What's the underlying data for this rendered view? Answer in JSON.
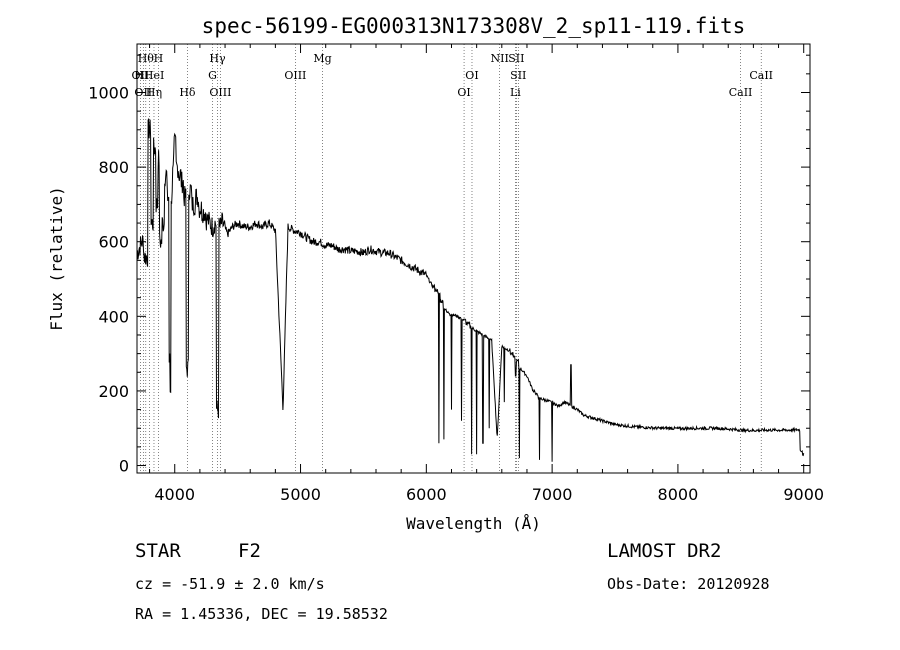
{
  "chart_data": {
    "type": "line",
    "title": "spec-56199-EG000313N173308V_2_sp11-119.fits",
    "xlabel": "Wavelength (Å)",
    "ylabel": "Flux (relative)",
    "xlim": [
      3700,
      9050
    ],
    "ylim": [
      -20,
      1130
    ],
    "xticks": [
      4000,
      5000,
      6000,
      7000,
      8000,
      9000
    ],
    "yticks": [
      0,
      200,
      400,
      600,
      800,
      1000
    ],
    "grid": false,
    "series": [
      {
        "x": [
          3700,
          3740,
          3770,
          3800,
          3820,
          3840,
          3860,
          3870,
          3890,
          3910,
          3930,
          3950,
          3960,
          3968,
          3975,
          3990,
          4000,
          4020,
          4040,
          4060,
          4080,
          4101,
          4120,
          4150,
          4180,
          4200,
          4230,
          4260,
          4300,
          4320,
          4340,
          4360,
          4380,
          4420,
          4460,
          4500,
          4550,
          4600,
          4650,
          4700,
          4750,
          4800,
          4861,
          4900,
          4950,
          5000,
          5050,
          5100,
          5150,
          5200,
          5250,
          5300,
          5350,
          5400,
          5450,
          5500,
          5550,
          5600,
          5650,
          5700,
          5750,
          5800,
          5850,
          5900,
          5950,
          6000,
          6050,
          6080,
          6100,
          6120,
          6150,
          6170,
          6200,
          6250,
          6300,
          6330,
          6360,
          6400,
          6450,
          6500,
          6520,
          6563,
          6600,
          6650,
          6680,
          6700,
          6720,
          6750,
          6800,
          6850,
          6880,
          6900,
          6950,
          6990,
          7020,
          7050,
          7100,
          7150,
          7200,
          7250,
          7300,
          7350,
          7400,
          7450,
          7500,
          7550,
          7600,
          7650,
          7700,
          7750,
          7800,
          7850,
          7900,
          7950,
          8000,
          8100,
          8200,
          8300,
          8400,
          8500,
          8600,
          8700,
          8800,
          8900,
          8960,
          8980,
          9000
        ],
        "y": [
          570,
          600,
          560,
          900,
          650,
          850,
          700,
          820,
          600,
          650,
          780,
          720,
          280,
          200,
          720,
          820,
          860,
          800,
          780,
          760,
          720,
          260,
          740,
          700,
          720,
          690,
          680,
          660,
          640,
          650,
          150,
          640,
          650,
          620,
          640,
          650,
          640,
          640,
          650,
          640,
          650,
          630,
          150,
          640,
          630,
          625,
          610,
          600,
          600,
          590,
          590,
          580,
          580,
          575,
          575,
          570,
          580,
          575,
          570,
          570,
          560,
          550,
          540,
          530,
          520,
          510,
          480,
          470,
          460,
          440,
          420,
          410,
          405,
          400,
          390,
          380,
          370,
          360,
          350,
          340,
          335,
          70,
          320,
          310,
          300,
          290,
          280,
          260,
          240,
          200,
          190,
          180,
          175,
          170,
          165,
          160,
          170,
          160,
          150,
          135,
          130,
          125,
          120,
          115,
          110,
          108,
          106,
          104,
          103,
          102,
          101,
          100,
          100,
          100,
          99,
          100,
          100,
          100,
          98,
          95,
          94,
          95,
          95,
          95,
          96,
          40,
          30
        ]
      }
    ],
    "dips": [
      {
        "x": 6100,
        "y": 60
      },
      {
        "x": 6140,
        "y": 70
      },
      {
        "x": 6200,
        "y": 150
      },
      {
        "x": 6280,
        "y": 120
      },
      {
        "x": 6360,
        "y": 30
      },
      {
        "x": 6400,
        "y": 30
      },
      {
        "x": 6450,
        "y": 60
      },
      {
        "x": 6500,
        "y": 100
      },
      {
        "x": 6620,
        "y": 170
      },
      {
        "x": 6710,
        "y": 240
      },
      {
        "x": 6740,
        "y": 20
      },
      {
        "x": 6900,
        "y": 15
      },
      {
        "x": 7000,
        "y": 10
      },
      {
        "x": 7150,
        "y": 270
      }
    ],
    "lines": [
      {
        "x": 3727,
        "label": "OII",
        "row": 1
      },
      {
        "x": 3750,
        "label": "OII",
        "row": 2
      },
      {
        "x": 3770,
        "label": "Hθ",
        "row": 0
      },
      {
        "x": 3798,
        "label": "HHeI",
        "row": 1
      },
      {
        "x": 3835,
        "label": "Hη",
        "row": 2
      },
      {
        "x": 3870,
        "label": "H",
        "row": 0
      },
      {
        "x": 4101,
        "label": "Hδ",
        "row": 2
      },
      {
        "x": 4300,
        "label": "G",
        "row": 1
      },
      {
        "x": 4340,
        "label": "Hγ",
        "row": 0
      },
      {
        "x": 4363,
        "label": "OIII",
        "row": 2
      },
      {
        "x": 4959,
        "label": "OIII",
        "row": 1
      },
      {
        "x": 5175,
        "label": "Mg",
        "row": 0
      },
      {
        "x": 6300,
        "label": "OI",
        "row": 2
      },
      {
        "x": 6363,
        "label": "OI",
        "row": 1
      },
      {
        "x": 6583,
        "label": "NII",
        "row": 0
      },
      {
        "x": 6716,
        "label": "SII",
        "row": 0
      },
      {
        "x": 6731,
        "label": "SII",
        "row": 1
      },
      {
        "x": 6708,
        "label": "Li",
        "row": 2
      },
      {
        "x": 8498,
        "label": "CaII",
        "row": 2
      },
      {
        "x": 8662,
        "label": "CaII",
        "row": 1
      }
    ]
  },
  "info": {
    "class_label": "STAR",
    "subclass": "F2",
    "survey": "LAMOST DR2",
    "redshift": "cz = -51.9 ± 2.0 km/s",
    "obs_date": "Obs-Date: 20120928",
    "coords": "RA =   1.45336, DEC =  19.58532"
  }
}
